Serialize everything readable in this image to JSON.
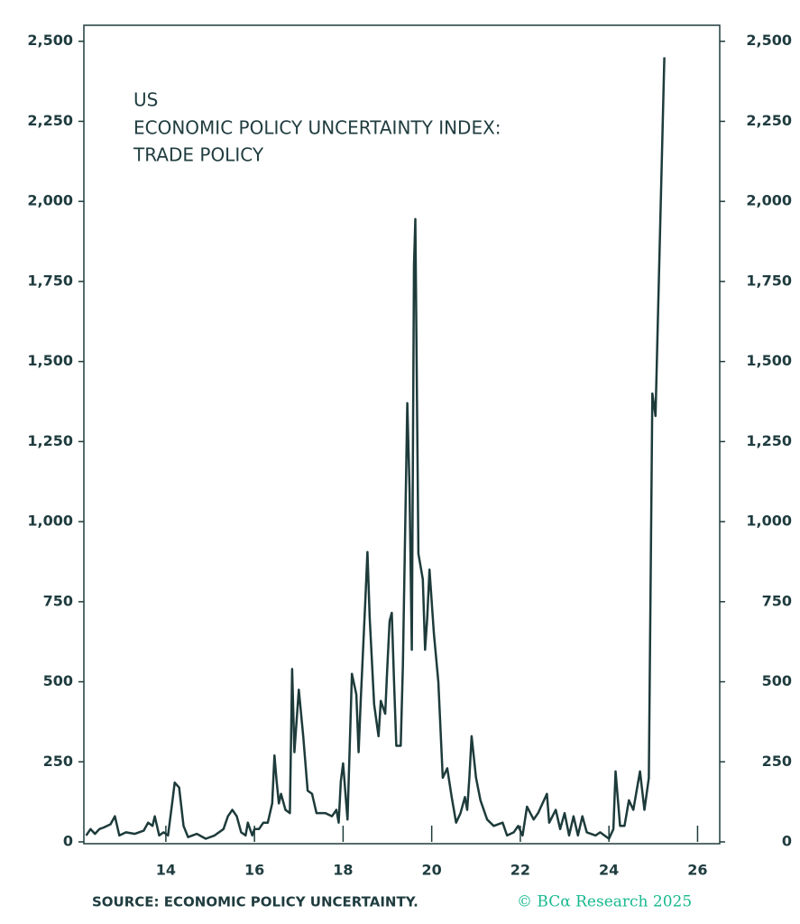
{
  "chart_data": {
    "type": "line",
    "title": [
      "US",
      "ECONOMIC POLICY UNCERTAINTY INDEX:",
      "TRADE POLICY"
    ],
    "source": "SOURCE: ECONOMIC POLICY UNCERTAINTY.",
    "credit": "© BCα Research 2025",
    "color": "#1e3b3b",
    "xlim": [
      12.15,
      26.5
    ],
    "xticks": [
      14,
      16,
      18,
      20,
      22,
      24,
      26
    ],
    "ylim": [
      0,
      2550
    ],
    "yticks": [
      0,
      250,
      500,
      750,
      {
        "value": 1000,
        "label": "1,000"
      },
      {
        "value": 1250,
        "label": "1,250"
      },
      {
        "value": 1500,
        "label": "1,500"
      },
      {
        "value": 1750,
        "label": "1,750"
      },
      {
        "value": 2000,
        "label": "2,000"
      },
      {
        "value": 2250,
        "label": "2,250"
      },
      {
        "value": 2500,
        "label": "2,500"
      }
    ],
    "right_axis_labels": true,
    "x": [
      12.2,
      12.3,
      12.4,
      12.5,
      12.6,
      12.75,
      12.85,
      12.95,
      13.1,
      13.3,
      13.5,
      13.6,
      13.7,
      13.75,
      13.85,
      13.95,
      14.05,
      14.15,
      14.2,
      14.3,
      14.4,
      14.5,
      14.7,
      14.9,
      15.1,
      15.3,
      15.4,
      15.5,
      15.6,
      15.7,
      15.8,
      15.85,
      15.95,
      16.0,
      16.1,
      16.2,
      16.3,
      16.4,
      16.45,
      16.5,
      16.55,
      16.6,
      16.7,
      16.8,
      16.85,
      16.9,
      17.0,
      17.1,
      17.2,
      17.3,
      17.4,
      17.6,
      17.75,
      17.85,
      17.9,
      17.95,
      18.0,
      18.1,
      18.2,
      18.3,
      18.35,
      18.4,
      18.5,
      18.55,
      18.6,
      18.7,
      18.8,
      18.85,
      18.95,
      19.0,
      19.05,
      19.1,
      19.15,
      19.2,
      19.3,
      19.35,
      19.45,
      19.5,
      19.55,
      19.6,
      19.63,
      19.7,
      19.8,
      19.85,
      19.9,
      19.95,
      20.05,
      20.15,
      20.25,
      20.35,
      20.45,
      20.55,
      20.65,
      20.75,
      20.8,
      20.85,
      20.9,
      21.0,
      21.1,
      21.25,
      21.4,
      21.6,
      21.7,
      21.85,
      21.95,
      22.05,
      22.15,
      22.3,
      22.4,
      22.5,
      22.6,
      22.65,
      22.8,
      22.9,
      23.0,
      23.1,
      23.2,
      23.3,
      23.4,
      23.5,
      23.7,
      23.8,
      24.0,
      24.1,
      24.15,
      24.25,
      24.35,
      24.45,
      24.55,
      24.65,
      24.7,
      24.8,
      24.9,
      24.98,
      25.05,
      25.25
    ],
    "values": [
      20,
      40,
      25,
      40,
      45,
      55,
      80,
      20,
      30,
      25,
      35,
      60,
      50,
      80,
      20,
      30,
      20,
      130,
      185,
      170,
      50,
      15,
      25,
      10,
      20,
      40,
      80,
      100,
      80,
      30,
      20,
      60,
      20,
      40,
      40,
      60,
      60,
      120,
      270,
      190,
      120,
      150,
      100,
      90,
      540,
      280,
      475,
      330,
      160,
      150,
      90,
      90,
      80,
      100,
      60,
      190,
      245,
      70,
      525,
      460,
      280,
      450,
      750,
      905,
      700,
      430,
      330,
      440,
      400,
      550,
      690,
      715,
      500,
      300,
      300,
      550,
      1370,
      1100,
      600,
      1800,
      1945,
      900,
      820,
      600,
      700,
      850,
      650,
      500,
      200,
      230,
      140,
      60,
      90,
      140,
      100,
      200,
      330,
      200,
      130,
      70,
      50,
      60,
      20,
      30,
      50,
      20,
      110,
      70,
      90,
      120,
      150,
      60,
      100,
      40,
      90,
      20,
      80,
      20,
      80,
      30,
      20,
      30,
      10,
      40,
      220,
      50,
      50,
      130,
      100,
      180,
      220,
      100,
      200,
      1400,
      1330,
      2450
    ]
  }
}
